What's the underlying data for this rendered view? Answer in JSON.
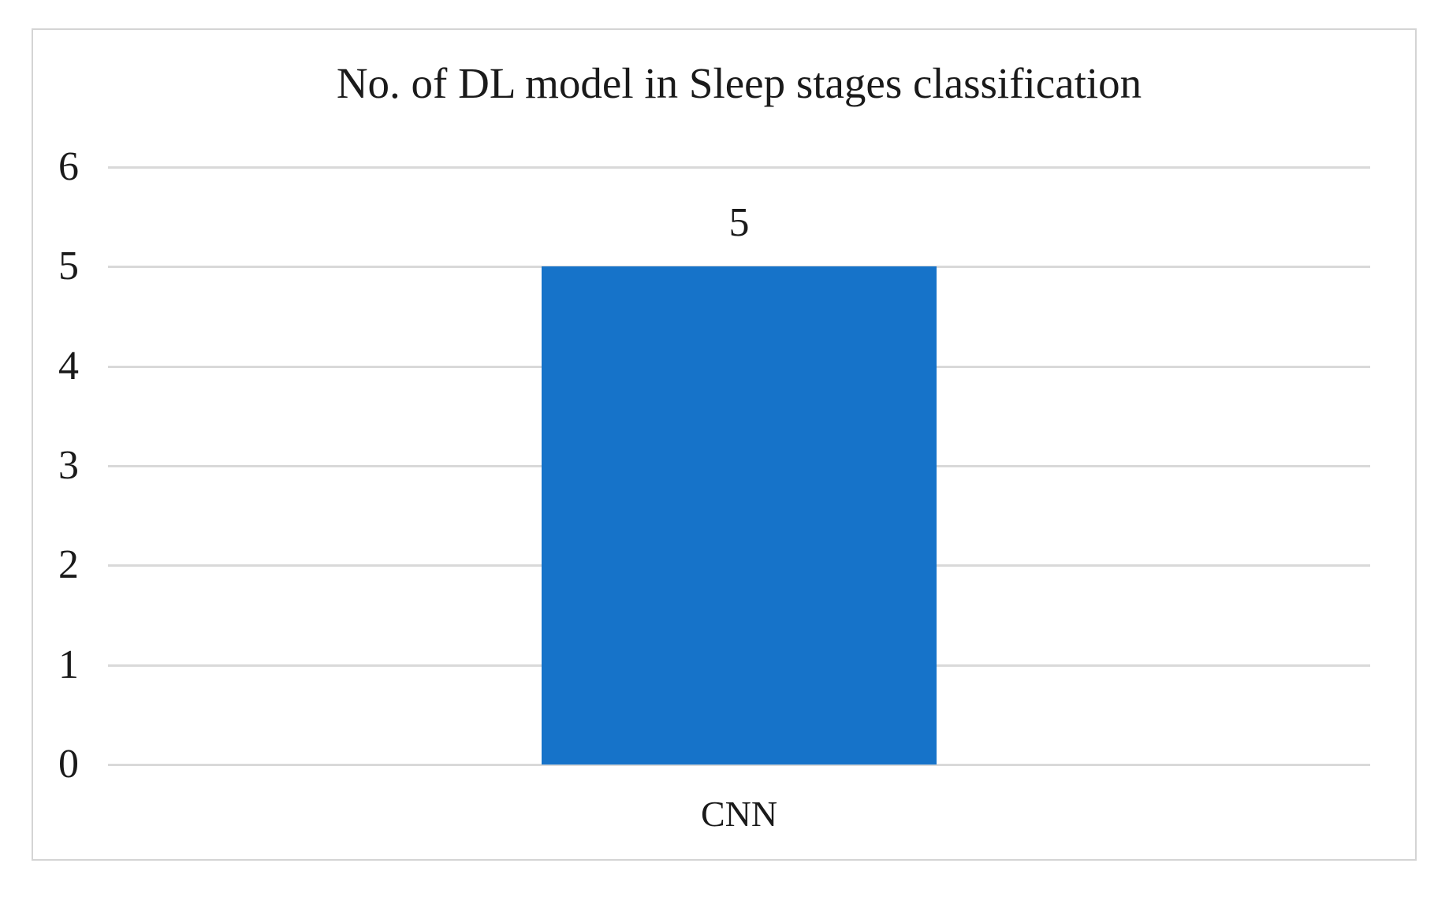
{
  "figure": {
    "title": "No. of DL model in Sleep stages classification"
  },
  "chart_data": {
    "type": "bar",
    "title": "No. of DL model in Sleep stages classification",
    "categories": [
      "CNN"
    ],
    "values": [
      5
    ],
    "data_labels": [
      "5"
    ],
    "xlabel": "",
    "ylabel": "",
    "ylim": [
      0,
      6
    ],
    "yticks": [
      0,
      1,
      2,
      3,
      4,
      5,
      6
    ],
    "grid": "horizontal",
    "legend": "none",
    "colors": {
      "bar_fill": "#1673C9",
      "gridline": "#d9d9d9",
      "frame_border": "#d4d4d4",
      "text": "#1a1a1a",
      "background": "#ffffff"
    }
  }
}
